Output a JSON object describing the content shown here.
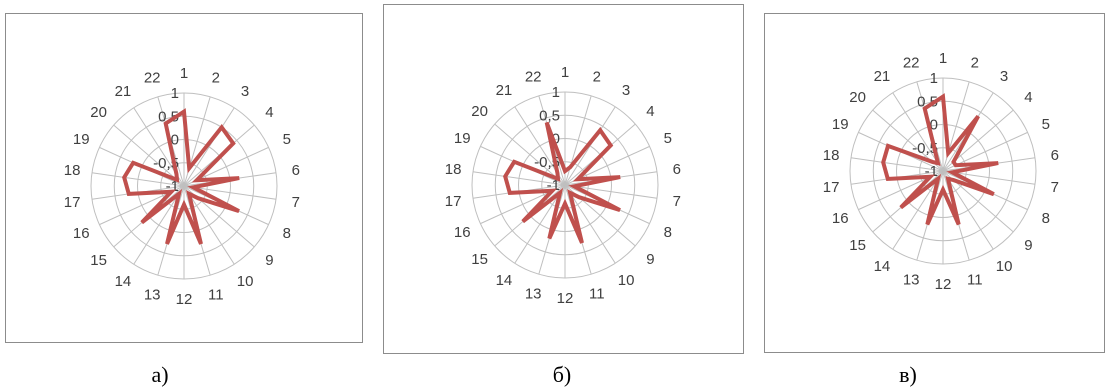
{
  "chart_data": [
    {
      "type": "radar",
      "caption": "а)",
      "categories": [
        "1",
        "2",
        "3",
        "4",
        "5",
        "6",
        "7",
        "8",
        "9",
        "10",
        "11",
        "12",
        "13",
        "14",
        "15",
        "16",
        "17",
        "18",
        "19",
        "20",
        "21",
        "22"
      ],
      "series": [
        {
          "values": [
            0.6,
            -0.6,
            0.5,
            0.4,
            -0.7,
            0.2,
            -0.8,
            0.3,
            -0.6,
            -0.8,
            0.3,
            -0.6,
            0.3,
            -0.8,
            0.2,
            -0.7,
            0.2,
            0.3,
            0.2,
            -0.8,
            -0.7,
            0.4
          ]
        }
      ],
      "tick_labels": [
        "-1",
        "-0,5",
        "0",
        "0,5",
        "1"
      ],
      "rlim": [
        -1,
        1
      ],
      "color": "#c0504d",
      "grid": true
    },
    {
      "type": "radar",
      "caption": "б)",
      "categories": [
        "1",
        "2",
        "3",
        "4",
        "5",
        "6",
        "7",
        "8",
        "9",
        "10",
        "11",
        "12",
        "13",
        "14",
        "15",
        "16",
        "17",
        "18",
        "19",
        "20",
        "21",
        "22"
      ],
      "series": [
        {
          "values": [
            -0.7,
            -0.6,
            0.4,
            0.3,
            -0.7,
            0.2,
            -0.8,
            0.3,
            -0.6,
            -0.8,
            0.3,
            -0.6,
            0.2,
            -0.8,
            0.2,
            -0.7,
            0.2,
            0.3,
            0.2,
            -0.8,
            -0.7,
            0.4
          ]
        }
      ],
      "tick_labels": [
        "-1",
        "-0,5",
        "0",
        "0,5",
        "1"
      ],
      "rlim": [
        -1,
        1
      ],
      "color": "#c0504d",
      "grid": true
    },
    {
      "type": "radar",
      "caption": "в)",
      "categories": [
        "1",
        "2",
        "3",
        "4",
        "5",
        "6",
        "7",
        "8",
        "9",
        "10",
        "11",
        "12",
        "13",
        "14",
        "15",
        "16",
        "17",
        "18",
        "19",
        "20",
        "21",
        "22"
      ],
      "series": [
        {
          "values": [
            0.6,
            -0.6,
            0.4,
            -0.7,
            -0.7,
            0.2,
            -0.8,
            0.2,
            -0.7,
            -0.8,
            0.2,
            -0.6,
            0.2,
            -0.8,
            0.2,
            -0.7,
            0.2,
            0.3,
            0.3,
            -0.7,
            -0.8,
            0.4
          ]
        }
      ],
      "tick_labels": [
        "-1",
        "-0,5",
        "0",
        "0,5",
        "1"
      ],
      "rlim": [
        -1,
        1
      ],
      "color": "#c0504d",
      "grid": true
    }
  ]
}
